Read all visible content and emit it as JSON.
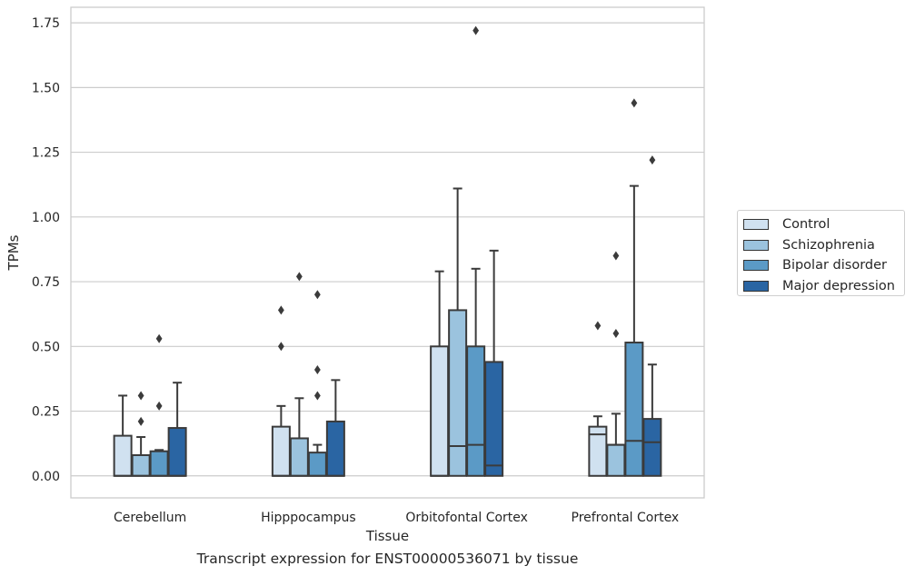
{
  "chart_data": {
    "type": "boxplot",
    "xlabel": "Tissue",
    "ylabel": "TPMs",
    "caption": "Transcript expression for ENST00000536071 by tissue",
    "ylim": [
      -0.085,
      1.81
    ],
    "yticks": [
      0.0,
      0.25,
      0.5,
      0.75,
      1.0,
      1.25,
      1.5,
      1.75
    ],
    "ytick_labels": [
      "0.00",
      "0.25",
      "0.50",
      "0.75",
      "1.00",
      "1.25",
      "1.50",
      "1.75"
    ],
    "grid": true,
    "legend_position": "right",
    "categories": [
      "Cerebellum",
      "Hipppocampus",
      "Orbitofontal Cortex",
      "Prefrontal Cortex"
    ],
    "series": [
      {
        "name": "Control",
        "color": "#d0e1f0",
        "boxes": [
          {
            "whislo": 0.0,
            "q1": 0.0,
            "med": 0.0,
            "q3": 0.155,
            "whishi": 0.31,
            "fliers": []
          },
          {
            "whislo": 0.0,
            "q1": 0.0,
            "med": 0.0,
            "q3": 0.19,
            "whishi": 0.27,
            "fliers": [
              0.5,
              0.64
            ]
          },
          {
            "whislo": 0.0,
            "q1": 0.0,
            "med": 0.0,
            "q3": 0.5,
            "whishi": 0.79,
            "fliers": []
          },
          {
            "whislo": 0.0,
            "q1": 0.0,
            "med": 0.16,
            "q3": 0.19,
            "whishi": 0.23,
            "fliers": [
              0.58
            ]
          }
        ]
      },
      {
        "name": "Schizophrenia",
        "color": "#9bc3de",
        "boxes": [
          {
            "whislo": 0.0,
            "q1": 0.0,
            "med": 0.0,
            "q3": 0.08,
            "whishi": 0.15,
            "fliers": [
              0.21,
              0.31
            ]
          },
          {
            "whislo": 0.0,
            "q1": 0.0,
            "med": 0.0,
            "q3": 0.145,
            "whishi": 0.3,
            "fliers": [
              0.77
            ]
          },
          {
            "whislo": 0.0,
            "q1": 0.0,
            "med": 0.115,
            "q3": 0.64,
            "whishi": 1.11,
            "fliers": []
          },
          {
            "whislo": 0.0,
            "q1": 0.0,
            "med": 0.12,
            "q3": 0.12,
            "whishi": 0.24,
            "fliers": [
              0.55,
              0.85
            ]
          }
        ]
      },
      {
        "name": "Bipolar disorder",
        "color": "#5b9ac6",
        "boxes": [
          {
            "whislo": 0.0,
            "q1": 0.0,
            "med": 0.0,
            "q3": 0.095,
            "whishi": 0.1,
            "fliers": [
              0.27,
              0.53
            ]
          },
          {
            "whislo": 0.0,
            "q1": 0.0,
            "med": 0.0,
            "q3": 0.09,
            "whishi": 0.12,
            "fliers": [
              0.31,
              0.41,
              0.7
            ]
          },
          {
            "whislo": 0.0,
            "q1": 0.0,
            "med": 0.12,
            "q3": 0.5,
            "whishi": 0.8,
            "fliers": [
              1.72
            ]
          },
          {
            "whislo": 0.0,
            "q1": 0.0,
            "med": 0.135,
            "q3": 0.515,
            "whishi": 1.12,
            "fliers": [
              1.44
            ]
          }
        ]
      },
      {
        "name": "Major depression",
        "color": "#2a65a3",
        "boxes": [
          {
            "whislo": 0.0,
            "q1": 0.0,
            "med": 0.0,
            "q3": 0.185,
            "whishi": 0.36,
            "fliers": []
          },
          {
            "whislo": 0.0,
            "q1": 0.0,
            "med": 0.0,
            "q3": 0.21,
            "whishi": 0.37,
            "fliers": []
          },
          {
            "whislo": 0.0,
            "q1": 0.0,
            "med": 0.04,
            "q3": 0.44,
            "whishi": 0.87,
            "fliers": []
          },
          {
            "whislo": 0.0,
            "q1": 0.0,
            "med": 0.13,
            "q3": 0.22,
            "whishi": 0.43,
            "fliers": [
              1.22
            ]
          }
        ]
      }
    ]
  }
}
